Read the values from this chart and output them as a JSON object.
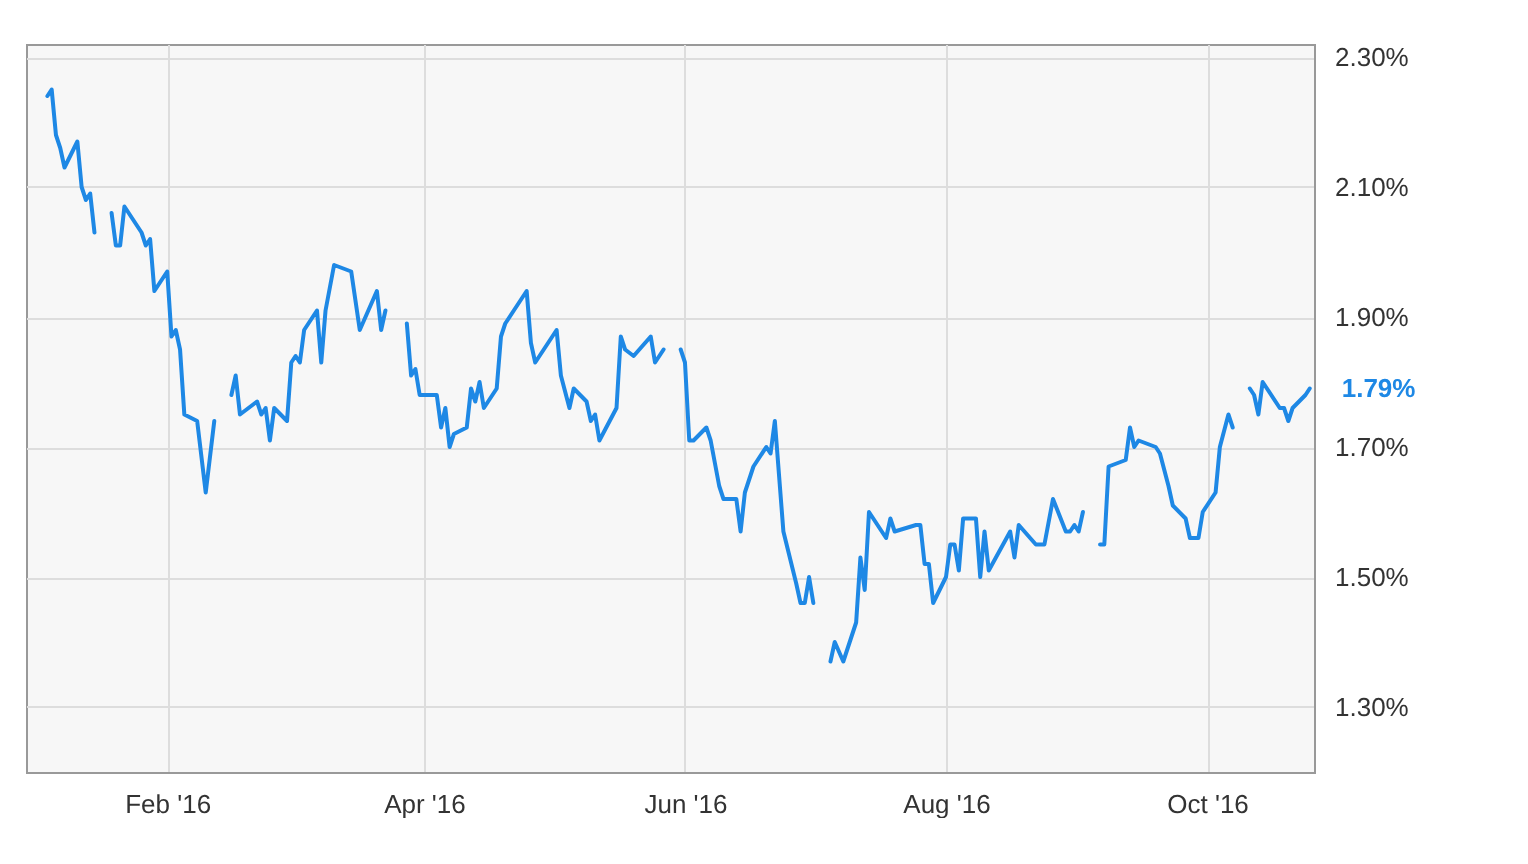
{
  "chart_data": {
    "type": "line",
    "x": [
      "2016-01-04",
      "2016-01-05",
      "2016-01-06",
      "2016-01-07",
      "2016-01-08",
      "2016-01-11",
      "2016-01-12",
      "2016-01-13",
      "2016-01-14",
      "2016-01-15",
      "2016-01-18",
      "2016-01-19",
      "2016-01-20",
      "2016-01-21",
      "2016-01-22",
      "2016-01-26",
      "2016-01-27",
      "2016-01-28",
      "2016-01-29",
      "2016-02-01",
      "2016-02-02",
      "2016-02-03",
      "2016-02-04",
      "2016-02-05",
      "2016-02-08",
      "2016-02-10",
      "2016-02-12",
      "2016-02-15",
      "2016-02-16",
      "2016-02-17",
      "2016-02-18",
      "2016-02-22",
      "2016-02-23",
      "2016-02-24",
      "2016-02-25",
      "2016-02-26",
      "2016-02-29",
      "2016-03-01",
      "2016-03-02",
      "2016-03-03",
      "2016-03-04",
      "2016-03-07",
      "2016-03-08",
      "2016-03-09",
      "2016-03-11",
      "2016-03-15",
      "2016-03-17",
      "2016-03-21",
      "2016-03-22",
      "2016-03-23",
      "2016-03-25",
      "2016-03-28",
      "2016-03-29",
      "2016-03-30",
      "2016-03-31",
      "2016-04-04",
      "2016-04-05",
      "2016-04-06",
      "2016-04-07",
      "2016-04-08",
      "2016-04-11",
      "2016-04-12",
      "2016-04-13",
      "2016-04-14",
      "2016-04-15",
      "2016-04-18",
      "2016-04-19",
      "2016-04-20",
      "2016-04-22",
      "2016-04-25",
      "2016-04-26",
      "2016-04-27",
      "2016-04-28",
      "2016-05-02",
      "2016-05-03",
      "2016-05-05",
      "2016-05-06",
      "2016-05-09",
      "2016-05-10",
      "2016-05-11",
      "2016-05-12",
      "2016-05-16",
      "2016-05-17",
      "2016-05-18",
      "2016-05-20",
      "2016-05-24",
      "2016-05-25",
      "2016-05-27",
      "2016-05-30",
      "2016-05-31",
      "2016-06-01",
      "2016-06-02",
      "2016-06-03",
      "2016-06-06",
      "2016-06-07",
      "2016-06-09",
      "2016-06-10",
      "2016-06-13",
      "2016-06-14",
      "2016-06-15",
      "2016-06-17",
      "2016-06-20",
      "2016-06-21",
      "2016-06-22",
      "2016-06-24",
      "2016-06-27",
      "2016-06-28",
      "2016-06-29",
      "2016-06-30",
      "2016-07-01",
      "2016-07-04",
      "2016-07-05",
      "2016-07-06",
      "2016-07-08",
      "2016-07-11",
      "2016-07-12",
      "2016-07-13",
      "2016-07-14",
      "2016-07-15",
      "2016-07-18",
      "2016-07-19",
      "2016-07-20",
      "2016-07-25",
      "2016-07-26",
      "2016-07-27",
      "2016-07-28",
      "2016-07-29",
      "2016-08-01",
      "2016-08-02",
      "2016-08-03",
      "2016-08-04",
      "2016-08-05",
      "2016-08-08",
      "2016-08-09",
      "2016-08-10",
      "2016-08-11",
      "2016-08-16",
      "2016-08-17",
      "2016-08-18",
      "2016-08-22",
      "2016-08-24",
      "2016-08-26",
      "2016-08-29",
      "2016-08-30",
      "2016-08-31",
      "2016-09-01",
      "2016-09-02",
      "2016-09-05",
      "2016-09-06",
      "2016-09-07",
      "2016-09-08",
      "2016-09-12",
      "2016-09-13",
      "2016-09-14",
      "2016-09-15",
      "2016-09-19",
      "2016-09-20",
      "2016-09-22",
      "2016-09-23",
      "2016-09-26",
      "2016-09-27",
      "2016-09-28",
      "2016-09-29",
      "2016-09-30",
      "2016-10-03",
      "2016-10-04",
      "2016-10-06",
      "2016-10-07",
      "2016-10-10",
      "2016-10-11",
      "2016-10-12",
      "2016-10-13",
      "2016-10-14",
      "2016-10-18",
      "2016-10-19",
      "2016-10-20",
      "2016-10-21",
      "2016-10-24",
      "2016-10-25"
    ],
    "series": [
      {
        "color": "#1e88e5",
        "values": [
          2.24,
          2.25,
          2.18,
          2.16,
          2.13,
          2.17,
          2.1,
          2.08,
          2.09,
          2.03,
          null,
          2.06,
          2.01,
          2.01,
          2.07,
          2.03,
          2.01,
          2.02,
          1.94,
          1.97,
          1.87,
          1.88,
          1.85,
          1.75,
          1.74,
          1.63,
          1.74,
          null,
          1.78,
          1.81,
          1.75,
          1.77,
          1.75,
          1.76,
          1.71,
          1.76,
          1.74,
          1.83,
          1.84,
          1.83,
          1.88,
          1.91,
          1.83,
          1.91,
          1.98,
          1.97,
          1.88,
          1.94,
          1.88,
          1.91,
          null,
          1.89,
          1.81,
          1.82,
          1.78,
          1.78,
          1.73,
          1.76,
          1.7,
          1.72,
          1.73,
          1.79,
          1.77,
          1.8,
          1.76,
          1.79,
          1.87,
          1.89,
          1.91,
          1.94,
          1.86,
          1.83,
          1.84,
          1.88,
          1.81,
          1.76,
          1.79,
          1.77,
          1.74,
          1.75,
          1.71,
          1.76,
          1.87,
          1.85,
          1.84,
          1.87,
          1.83,
          1.85,
          null,
          1.85,
          1.83,
          1.71,
          1.71,
          1.73,
          1.71,
          1.64,
          1.62,
          1.62,
          1.57,
          1.63,
          1.67,
          1.7,
          1.69,
          1.74,
          1.57,
          1.49,
          1.46,
          1.46,
          1.5,
          1.46,
          null,
          1.37,
          1.4,
          1.37,
          1.43,
          1.53,
          1.48,
          1.6,
          1.59,
          1.56,
          1.59,
          1.57,
          1.58,
          1.58,
          1.52,
          1.52,
          1.46,
          1.5,
          1.55,
          1.55,
          1.51,
          1.59,
          1.59,
          1.5,
          1.57,
          1.51,
          1.57,
          1.53,
          1.58,
          1.55,
          1.55,
          1.62,
          1.57,
          1.57,
          1.58,
          1.57,
          1.6,
          null,
          1.55,
          1.55,
          1.67,
          1.68,
          1.73,
          1.7,
          1.71,
          1.7,
          1.69,
          1.64,
          1.61,
          1.59,
          1.56,
          1.56,
          1.56,
          1.6,
          1.63,
          1.7,
          1.75,
          1.73,
          null,
          1.79,
          1.78,
          1.75,
          1.8,
          1.76,
          1.76,
          1.74,
          1.76,
          1.78,
          1.79
        ]
      }
    ],
    "xlim": [
      "2015-12-30",
      "2016-10-26"
    ],
    "xticks": [
      {
        "value": "2016-02-01",
        "label": "Feb '16"
      },
      {
        "value": "2016-04-01",
        "label": "Apr '16"
      },
      {
        "value": "2016-06-01",
        "label": "Jun '16"
      },
      {
        "value": "2016-08-01",
        "label": "Aug '16"
      },
      {
        "value": "2016-10-01",
        "label": "Oct '16"
      }
    ],
    "ylim": [
      1.2,
      2.32
    ],
    "yticks": [
      {
        "value": 1.3,
        "label": "1.30%"
      },
      {
        "value": 1.5,
        "label": "1.50%"
      },
      {
        "value": 1.7,
        "label": "1.70%"
      },
      {
        "value": 1.9,
        "label": "1.90%"
      },
      {
        "value": 2.1,
        "label": "2.10%"
      },
      {
        "value": 2.3,
        "label": "2.30%"
      }
    ],
    "grid": true,
    "annotations": [
      {
        "text": "1.79%",
        "x": "2016-10-25",
        "y": 1.79
      }
    ]
  }
}
